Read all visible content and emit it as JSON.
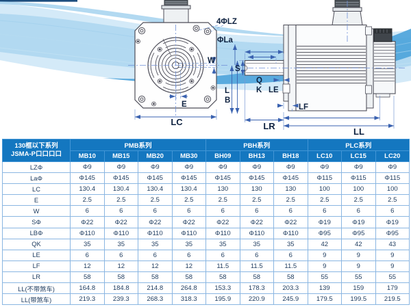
{
  "diagram": {
    "front_labels": {
      "lz": "4ΦLZ",
      "la": "ΦLa",
      "w": "W",
      "e": "E",
      "lc": "LC"
    },
    "side_labels": {
      "s": "S",
      "l": "L",
      "b": "B",
      "q": "Q",
      "k": "K",
      "le": "LE",
      "lf": "LF",
      "lr": "LR",
      "ll": "LL"
    }
  },
  "table": {
    "header": {
      "series_title_line1": "130框以下系列",
      "series_title_line2": "JSMA-P口口口口",
      "groups": [
        {
          "label": "PMB系列",
          "models": [
            "MB10",
            "MB15",
            "MB20",
            "MB30"
          ]
        },
        {
          "label": "PBH系列",
          "models": [
            "BH09",
            "BH13",
            "BH18"
          ]
        },
        {
          "label": "PLC系列",
          "models": [
            "LC10",
            "LC15",
            "LC20"
          ]
        }
      ]
    },
    "rows": [
      {
        "label": "LZΦ",
        "values": [
          "Φ9",
          "Φ9",
          "Φ9",
          "Φ9",
          "Φ9",
          "Φ9",
          "Φ9",
          "Φ9",
          "Φ9",
          "Φ9"
        ]
      },
      {
        "label": "LaΦ",
        "values": [
          "Φ145",
          "Φ145",
          "Φ145",
          "Φ145",
          "Φ145",
          "Φ145",
          "Φ145",
          "Φ115",
          "Φ115",
          "Φ115"
        ]
      },
      {
        "label": "LC",
        "values": [
          "130.4",
          "130.4",
          "130.4",
          "130.4",
          "130",
          "130",
          "130",
          "100",
          "100",
          "100"
        ]
      },
      {
        "label": "E",
        "values": [
          "2.5",
          "2.5",
          "2.5",
          "2.5",
          "2.5",
          "2.5",
          "2.5",
          "2.5",
          "2.5",
          "2.5"
        ]
      },
      {
        "label": "W",
        "values": [
          "6",
          "6",
          "6",
          "6",
          "6",
          "6",
          "6",
          "6",
          "6",
          "6"
        ]
      },
      {
        "label": "SΦ",
        "values": [
          "Φ22",
          "Φ22",
          "Φ22",
          "Φ22",
          "Φ22",
          "Φ22",
          "Φ22",
          "Φ19",
          "Φ19",
          "Φ19"
        ]
      },
      {
        "label": "LBΦ",
        "values": [
          "Φ110",
          "Φ110",
          "Φ110",
          "Φ110",
          "Φ110",
          "Φ110",
          "Φ110",
          "Φ95",
          "Φ95",
          "Φ95"
        ]
      },
      {
        "label": "QK",
        "values": [
          "35",
          "35",
          "35",
          "35",
          "35",
          "35",
          "35",
          "42",
          "42",
          "43"
        ]
      },
      {
        "label": "LE",
        "values": [
          "6",
          "6",
          "6",
          "6",
          "6",
          "6",
          "6",
          "9",
          "9",
          "9"
        ]
      },
      {
        "label": "LF",
        "values": [
          "12",
          "12",
          "12",
          "12",
          "11.5",
          "11.5",
          "11.5",
          "9",
          "9",
          "9"
        ]
      },
      {
        "label": "LR",
        "values": [
          "58",
          "58",
          "58",
          "58",
          "58",
          "58",
          "58",
          "55",
          "55",
          "55"
        ]
      },
      {
        "label": "LL(不带煞车)",
        "values": [
          "164.8",
          "184.8",
          "214.8",
          "264.8",
          "153.3",
          "178.3",
          "203.3",
          "139",
          "159",
          "179"
        ]
      },
      {
        "label": "LL(带煞车)",
        "values": [
          "219.3",
          "239.3",
          "268.3",
          "318.3",
          "195.9",
          "220.9",
          "245.9",
          "179.5",
          "199.5",
          "219.5"
        ]
      }
    ]
  },
  "colors": {
    "header_bg": "#1477c0",
    "table_border": "#8ab6e2",
    "body_text": "#1c3a5e",
    "dimension_line": "#3a62b0",
    "wave_accent": "#4ba3da"
  }
}
